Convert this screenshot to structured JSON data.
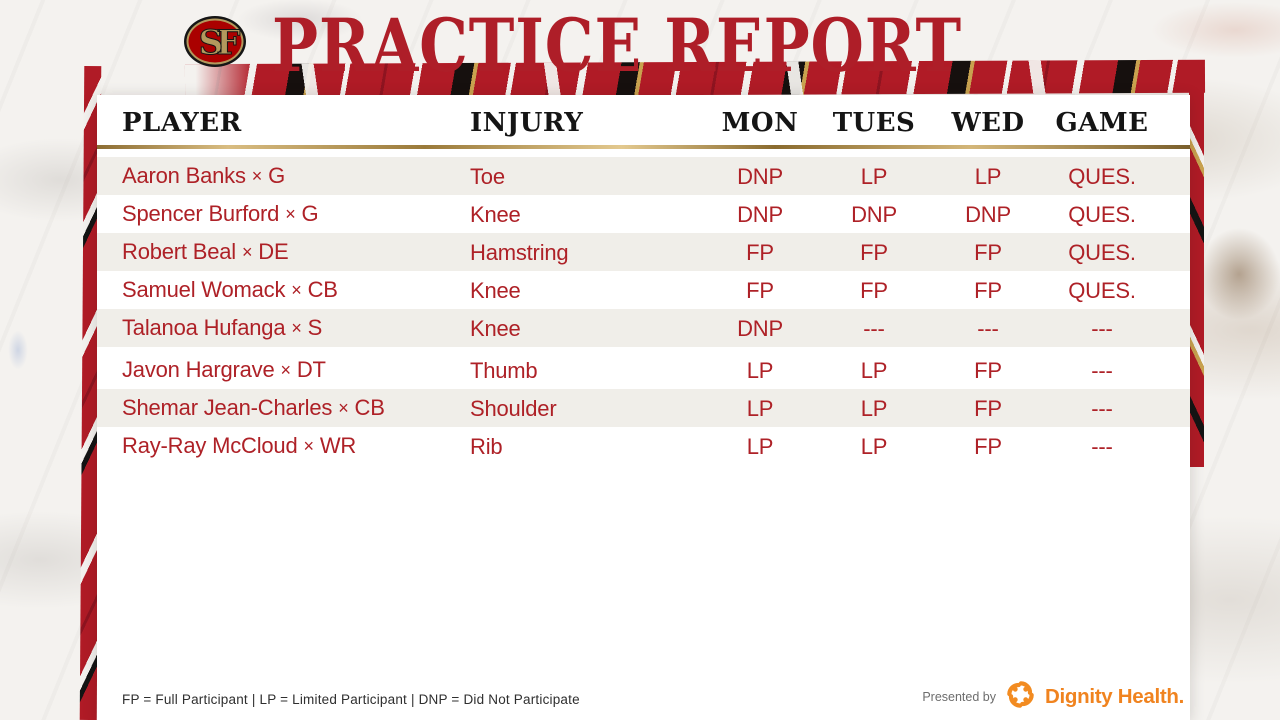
{
  "header": {
    "title": "PRACTICE REPORT",
    "logo_letters": "SF"
  },
  "table": {
    "columns": [
      "PLAYER",
      "INJURY",
      "MON",
      "TUES",
      "WED",
      "GAME"
    ],
    "name_position_separator": "×",
    "rows": [
      {
        "player": "Aaron Banks",
        "position": "G",
        "injury": "Toe",
        "mon": "DNP",
        "tues": "LP",
        "wed": "LP",
        "game": "QUES."
      },
      {
        "player": "Spencer Burford",
        "position": "G",
        "injury": "Knee",
        "mon": "DNP",
        "tues": "DNP",
        "wed": "DNP",
        "game": "QUES."
      },
      {
        "player": "Robert Beal",
        "position": "DE",
        "injury": "Hamstring",
        "mon": "FP",
        "tues": "FP",
        "wed": "FP",
        "game": "QUES."
      },
      {
        "player": "Samuel Womack",
        "position": "CB",
        "injury": "Knee",
        "mon": "FP",
        "tues": "FP",
        "wed": "FP",
        "game": "QUES."
      },
      {
        "player": "Talanoa Hufanga",
        "position": "S",
        "injury": "Knee",
        "mon": "DNP",
        "tues": "---",
        "wed": "---",
        "game": "---"
      },
      {
        "player": "Javon Hargrave",
        "position": "DT",
        "injury": "Thumb",
        "mon": "LP",
        "tues": "LP",
        "wed": "FP",
        "game": "---"
      },
      {
        "player": "Shemar Jean-Charles",
        "position": "CB",
        "injury": "Shoulder",
        "mon": "LP",
        "tues": "LP",
        "wed": "FP",
        "game": "---"
      },
      {
        "player": "Ray-Ray McCloud",
        "position": "WR",
        "injury": "Rib",
        "mon": "LP",
        "tues": "LP",
        "wed": "FP",
        "game": "---"
      }
    ]
  },
  "footer": {
    "legend": "FP = Full Participant | LP = Limited Participant | DNP = Did Not Participate",
    "presented_by_label": "Presented by",
    "sponsor_name": "Dignity Health."
  },
  "colors": {
    "brand_red": "#ae1e28",
    "row_text_red": "#ae2127",
    "gold": "#b3995d",
    "row_stripe_beige": "#f0eee9",
    "header_text": "#151515",
    "sponsor_orange": "#f0831f"
  }
}
